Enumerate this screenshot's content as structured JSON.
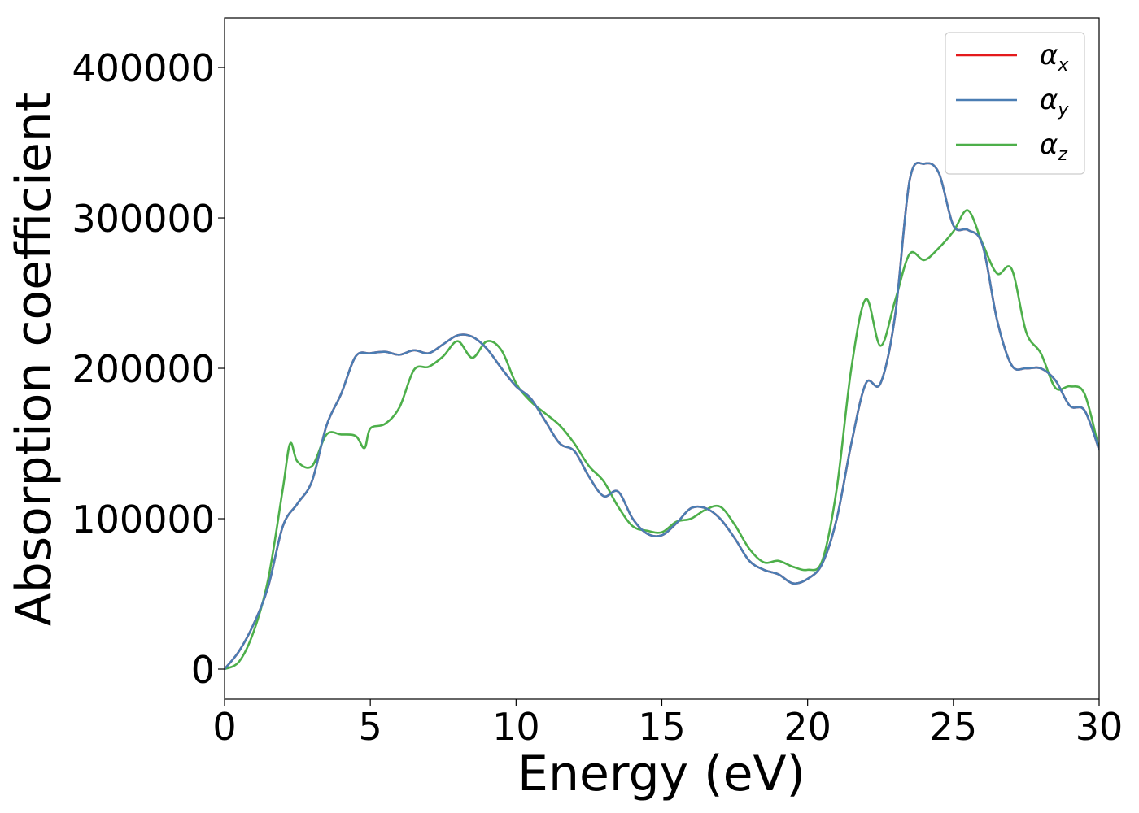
{
  "chart_data": {
    "type": "line",
    "xlabel": "Energy (eV)",
    "ylabel": "Absorption coefficient",
    "xlim": [
      0,
      30
    ],
    "ylim": [
      -20000,
      433000
    ],
    "xticks": [
      0,
      5,
      10,
      15,
      20,
      25,
      30
    ],
    "yticks": [
      0,
      100000,
      200000,
      300000,
      400000
    ],
    "xtick_labels": [
      "0",
      "5",
      "10",
      "15",
      "20",
      "25",
      "30"
    ],
    "ytick_labels": [
      "0",
      "100000",
      "200000",
      "300000",
      "400000"
    ],
    "grid": false,
    "legend_position": "top-right",
    "series": [
      {
        "name": "α_x",
        "label_base": "α",
        "label_sub": "x",
        "color": "#e41a1c",
        "x": [
          0,
          0.5,
          1,
          1.5,
          2,
          2.5,
          3,
          3.5,
          4,
          4.5,
          5,
          5.5,
          6,
          6.5,
          7,
          7.5,
          8,
          8.5,
          9,
          9.5,
          10,
          10.5,
          11,
          11.5,
          12,
          12.5,
          13,
          13.5,
          14,
          14.5,
          15,
          15.5,
          16,
          16.5,
          17,
          17.5,
          18,
          18.5,
          19,
          19.5,
          20,
          20.5,
          21,
          21.5,
          22,
          22.5,
          23,
          23.5,
          24,
          24.5,
          25,
          25.5,
          26,
          26.5,
          27,
          27.5,
          28,
          28.5,
          29,
          29.5,
          30
        ],
        "y": [
          0,
          12000,
          30000,
          55000,
          95000,
          110000,
          125000,
          162000,
          183000,
          208000,
          210000,
          211000,
          209000,
          212000,
          210000,
          216000,
          222000,
          221000,
          213000,
          200000,
          188000,
          180000,
          165000,
          150000,
          145000,
          128000,
          115000,
          118000,
          100000,
          90000,
          89000,
          97000,
          107000,
          107000,
          100000,
          87000,
          72000,
          66000,
          63000,
          57000,
          60000,
          70000,
          100000,
          150000,
          190000,
          190000,
          235000,
          325000,
          336000,
          330000,
          295000,
          292000,
          282000,
          232000,
          202000,
          200000,
          200000,
          192000,
          175000,
          172000,
          146000
        ]
      },
      {
        "name": "α_y",
        "label_base": "α",
        "label_sub": "y",
        "color": "#4a7db3",
        "x": [
          0,
          0.5,
          1,
          1.5,
          2,
          2.5,
          3,
          3.5,
          4,
          4.5,
          5,
          5.5,
          6,
          6.5,
          7,
          7.5,
          8,
          8.5,
          9,
          9.5,
          10,
          10.5,
          11,
          11.5,
          12,
          12.5,
          13,
          13.5,
          14,
          14.5,
          15,
          15.5,
          16,
          16.5,
          17,
          17.5,
          18,
          18.5,
          19,
          19.5,
          20,
          20.5,
          21,
          21.5,
          22,
          22.5,
          23,
          23.5,
          24,
          24.5,
          25,
          25.5,
          26,
          26.5,
          27,
          27.5,
          28,
          28.5,
          29,
          29.5,
          30
        ],
        "y": [
          0,
          12000,
          30000,
          55000,
          95000,
          110000,
          125000,
          162000,
          183000,
          208000,
          210000,
          211000,
          209000,
          212000,
          210000,
          216000,
          222000,
          221000,
          213000,
          200000,
          188000,
          180000,
          165000,
          150000,
          145000,
          128000,
          115000,
          118000,
          100000,
          90000,
          89000,
          97000,
          107000,
          107000,
          100000,
          87000,
          72000,
          66000,
          63000,
          57000,
          60000,
          70000,
          100000,
          150000,
          190000,
          190000,
          235000,
          325000,
          336000,
          330000,
          295000,
          292000,
          282000,
          232000,
          202000,
          200000,
          200000,
          192000,
          175000,
          172000,
          146000
        ]
      },
      {
        "name": "α_z",
        "label_base": "α",
        "label_sub": "z",
        "color": "#4daf4a",
        "x": [
          0,
          0.5,
          1,
          1.5,
          2,
          2.25,
          2.5,
          3,
          3.5,
          4,
          4.5,
          4.8,
          5,
          5.5,
          6,
          6.5,
          7,
          7.5,
          8,
          8.5,
          9,
          9.5,
          10,
          10.5,
          11,
          11.5,
          12,
          12.5,
          13,
          13.5,
          14,
          14.5,
          15,
          15.5,
          16,
          16.5,
          17,
          17.5,
          18,
          18.5,
          19,
          19.5,
          20,
          20.5,
          21,
          21.5,
          22,
          22.5,
          23,
          23.5,
          24,
          24.5,
          25,
          25.5,
          26,
          26.5,
          27,
          27.5,
          28,
          28.5,
          29,
          29.5,
          30
        ],
        "y": [
          0,
          5000,
          25000,
          60000,
          120000,
          150000,
          138000,
          135000,
          156000,
          156000,
          155000,
          147000,
          160000,
          163000,
          174000,
          199000,
          201000,
          208000,
          218000,
          207000,
          218000,
          212000,
          190000,
          178000,
          170000,
          162000,
          150000,
          135000,
          125000,
          108000,
          95000,
          92000,
          91000,
          98000,
          100000,
          106000,
          108000,
          96000,
          80000,
          71000,
          72000,
          68000,
          66000,
          72000,
          120000,
          200000,
          246000,
          215000,
          245000,
          276000,
          272000,
          280000,
          291000,
          305000,
          283000,
          263000,
          266000,
          224000,
          210000,
          187000,
          188000,
          183000,
          146000
        ]
      }
    ]
  }
}
